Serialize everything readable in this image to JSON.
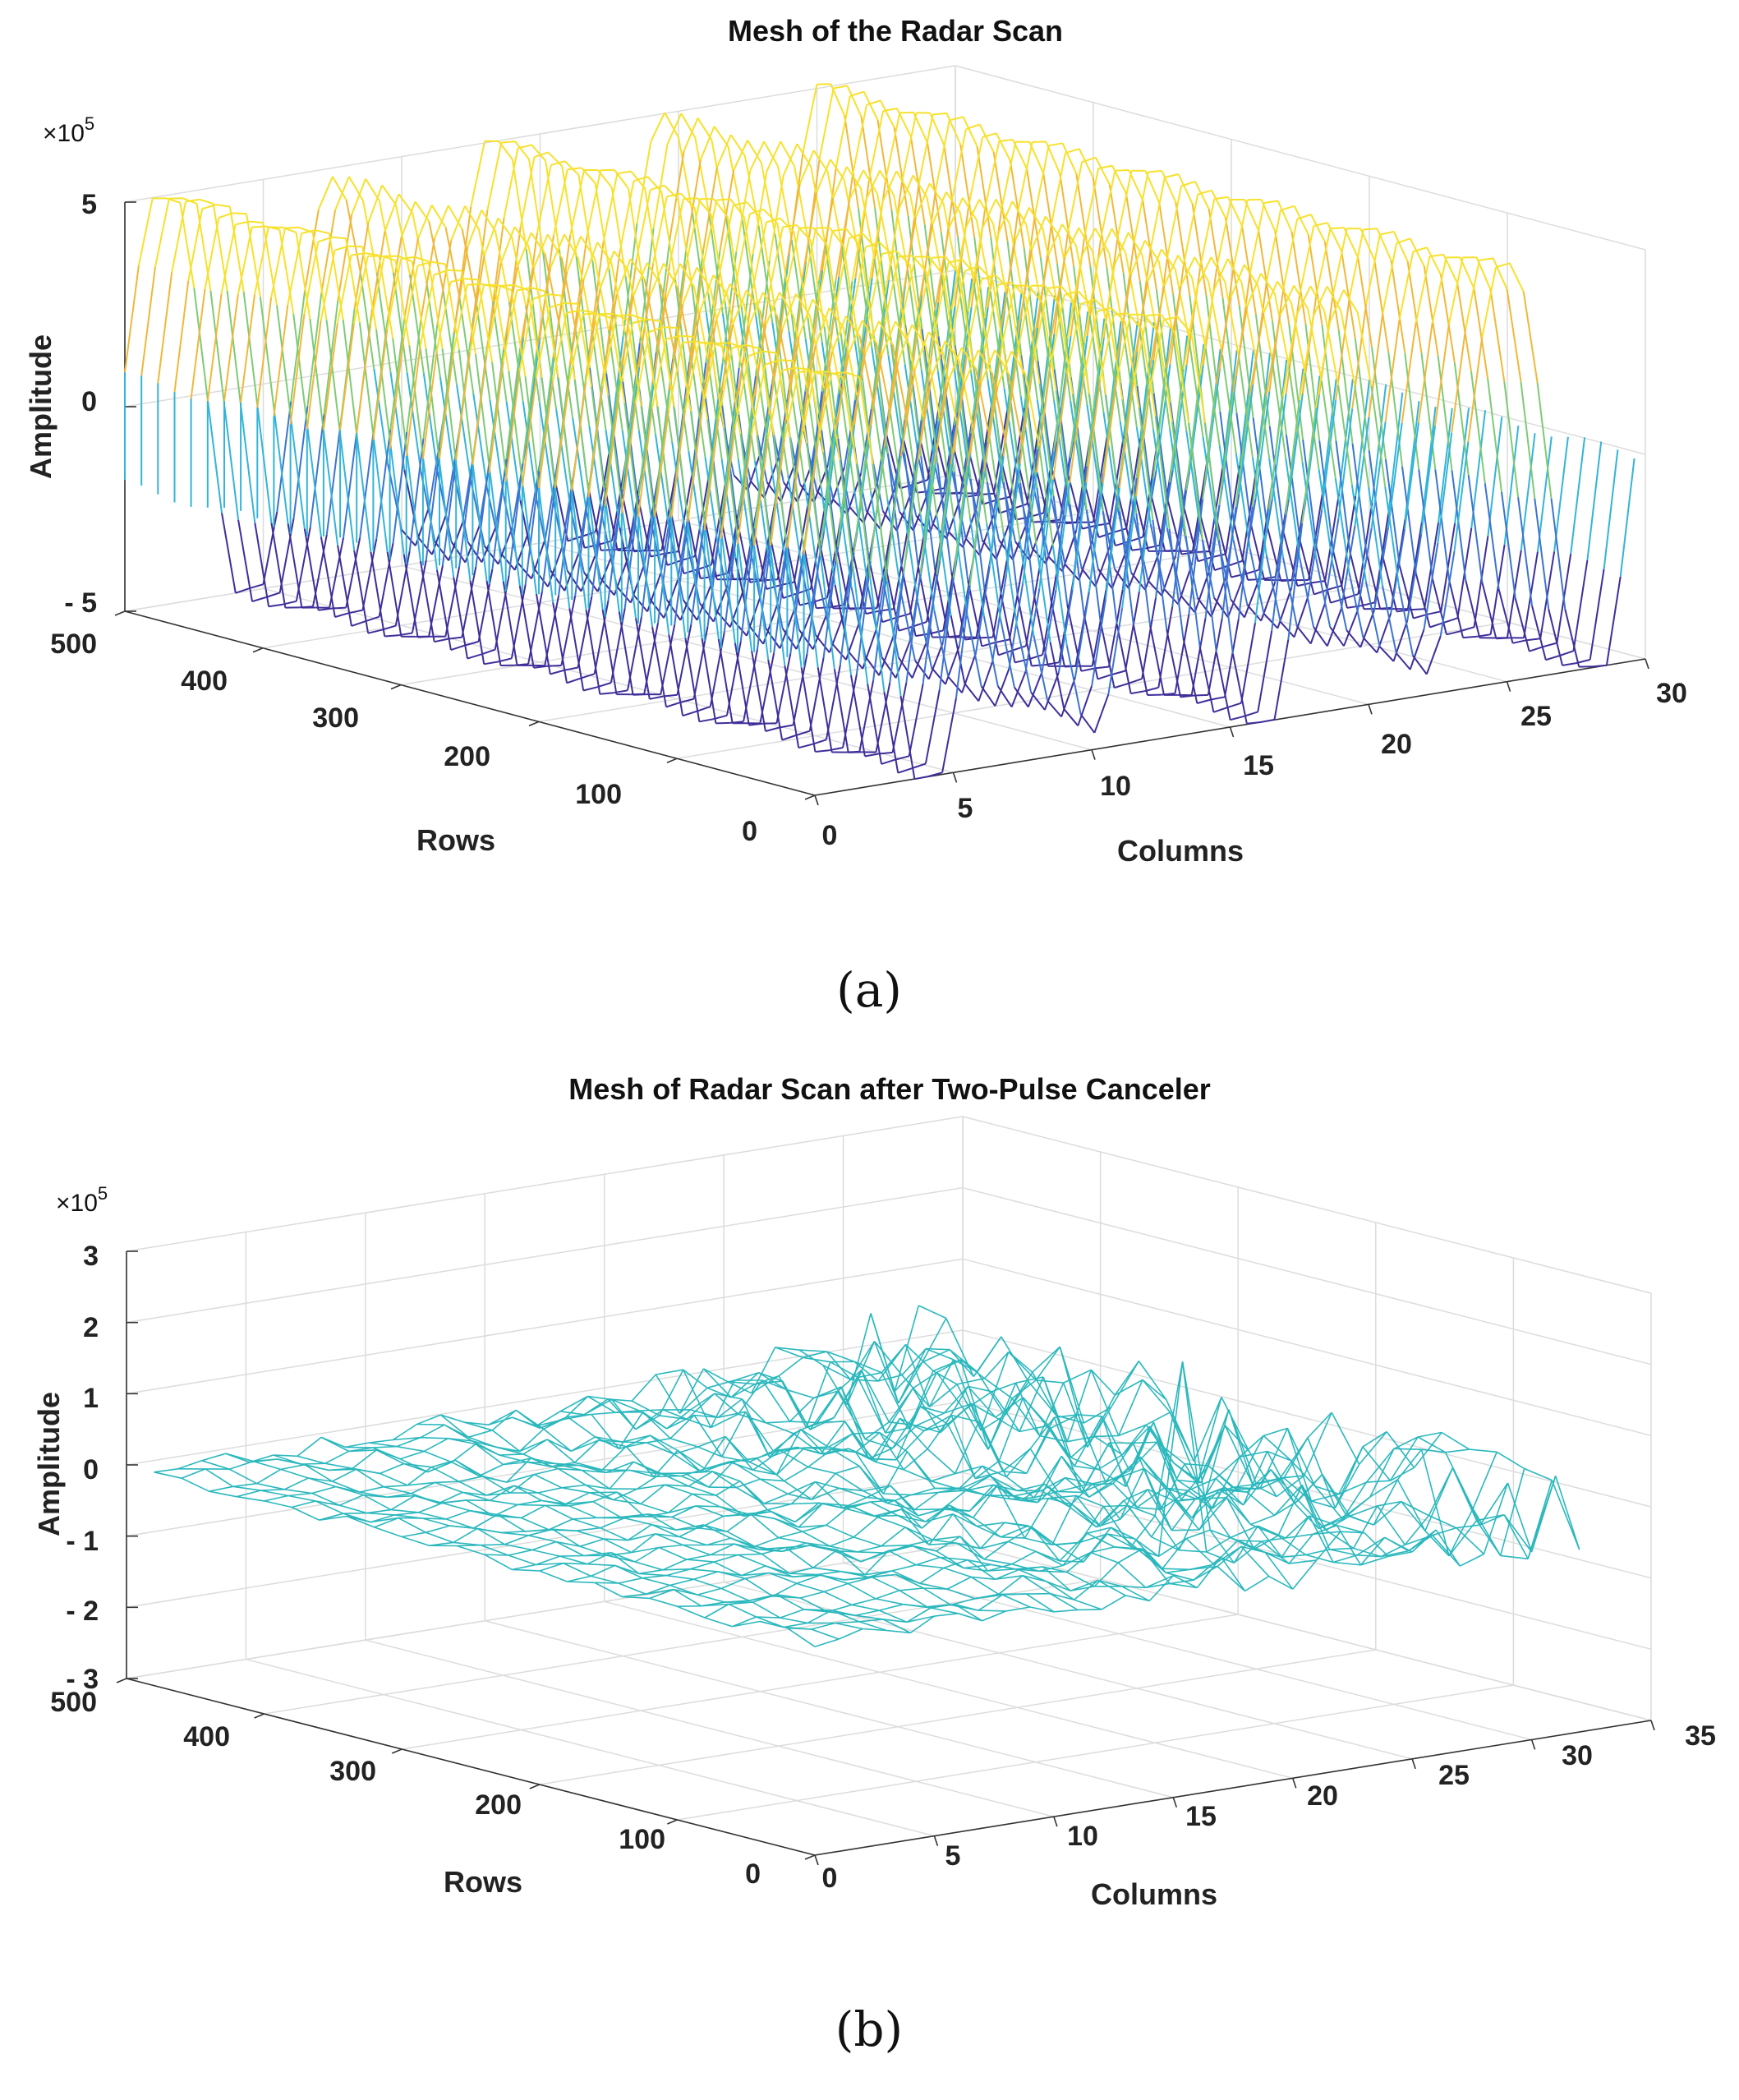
{
  "chart_data": [
    {
      "type": "mesh3d",
      "title": "Mesh of the Radar Scan",
      "zlabel": "Amplitude",
      "xlabel": "Columns",
      "ylabel": "Rows",
      "z_multiplier": "×10",
      "z_exponent": "5",
      "z_ticks": [
        "5",
        "0",
        "- 5"
      ],
      "row_ticks": [
        "500",
        "400",
        "300",
        "200",
        "100",
        "0"
      ],
      "col_ticks": [
        "0",
        "5",
        "10",
        "15",
        "20",
        "25",
        "30"
      ],
      "zlim": [
        -5,
        5
      ],
      "rows_lim": [
        0,
        500
      ],
      "cols_lim": [
        0,
        30
      ],
      "colormap": [
        "#3e2f9a",
        "#3b74d0",
        "#33b4d8",
        "#7ecb74",
        "#f0b83a",
        "#f7e12c"
      ],
      "caption": "(a)"
    },
    {
      "type": "mesh3d",
      "title": "Mesh of Radar Scan after Two-Pulse Canceler",
      "zlabel": "Amplitude",
      "xlabel": "Columns",
      "ylabel": "Rows",
      "z_multiplier": "×10",
      "z_exponent": "5",
      "z_ticks": [
        "3",
        "2",
        "1",
        "0",
        "- 1",
        "- 2",
        "- 3"
      ],
      "row_ticks": [
        "500",
        "400",
        "300",
        "200",
        "100",
        "0"
      ],
      "col_ticks": [
        "0",
        "5",
        "10",
        "15",
        "20",
        "25",
        "30",
        "35"
      ],
      "zlim": [
        -3,
        3
      ],
      "rows_lim": [
        0,
        500
      ],
      "cols_lim": [
        0,
        35
      ],
      "mesh_color": "#2bb8bd",
      "caption": "(b)"
    }
  ]
}
